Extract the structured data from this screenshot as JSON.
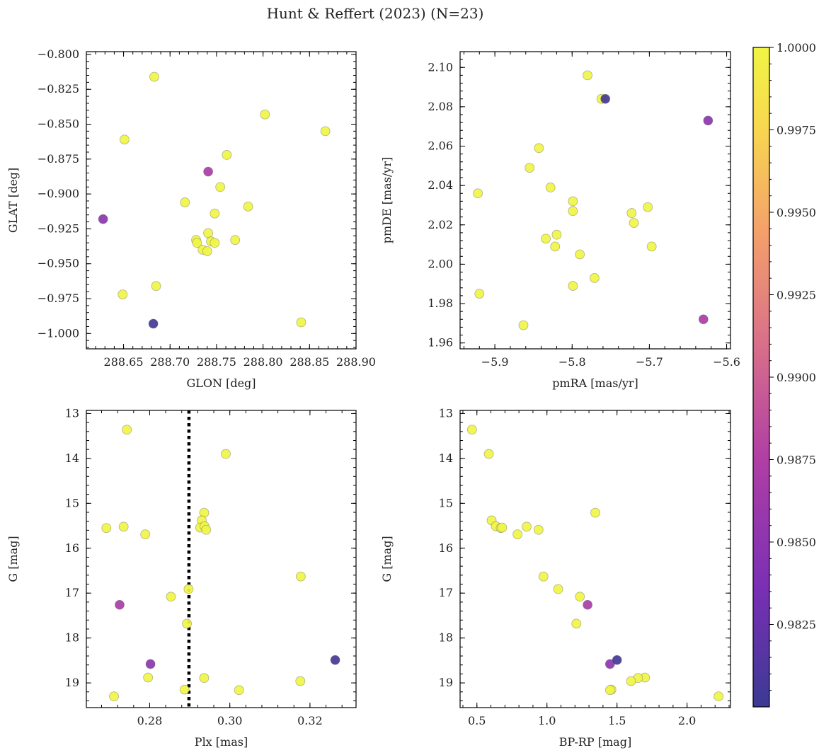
{
  "figure": {
    "title": "Hunt & Reffert (2023) (N=23)"
  },
  "colorbar": {
    "vmin": 0.98,
    "vmax": 1.0,
    "ticks": [
      "1.0000",
      "0.9975",
      "0.9950",
      "0.9925",
      "0.9900",
      "0.9875",
      "0.9850",
      "0.9825"
    ],
    "tick_values": [
      1.0,
      0.9975,
      0.995,
      0.9925,
      0.99,
      0.9875,
      0.985,
      0.9825
    ],
    "colormap": [
      "#3b3a93",
      "#7a2fb5",
      "#b13fa4",
      "#d96f8a",
      "#f4a06b",
      "#f8d84f",
      "#f0f545"
    ]
  },
  "chart_data": [
    {
      "type": "scatter",
      "id": "glon-glat",
      "xlabel": "GLON [deg]",
      "ylabel": "GLAT [deg]",
      "xlim": [
        288.61,
        288.9
      ],
      "ylim": [
        -1.011,
        -0.798
      ],
      "xticks": [
        288.65,
        288.7,
        288.75,
        288.8,
        288.85,
        288.9
      ],
      "xtick_labels": [
        "288.65",
        "288.70",
        "288.75",
        "288.80",
        "288.85",
        "288.90"
      ],
      "yticks": [
        -0.8,
        -0.825,
        -0.85,
        -0.875,
        -0.9,
        -0.925,
        -0.95,
        -0.975,
        -1.0
      ],
      "ytick_labels": [
        "−0.800",
        "−0.825",
        "−0.850",
        "−0.875",
        "−0.900",
        "−0.925",
        "−0.950",
        "−0.975",
        "−1.000"
      ],
      "points": [
        {
          "x": 288.683,
          "y": -0.816,
          "c": 1.0
        },
        {
          "x": 288.651,
          "y": -0.861,
          "c": 1.0
        },
        {
          "x": 288.802,
          "y": -0.843,
          "c": 1.0
        },
        {
          "x": 288.867,
          "y": -0.855,
          "c": 1.0
        },
        {
          "x": 288.761,
          "y": -0.872,
          "c": 1.0
        },
        {
          "x": 288.741,
          "y": -0.884,
          "c": 0.987
        },
        {
          "x": 288.754,
          "y": -0.895,
          "c": 1.0
        },
        {
          "x": 288.716,
          "y": -0.906,
          "c": 1.0
        },
        {
          "x": 288.784,
          "y": -0.909,
          "c": 1.0
        },
        {
          "x": 288.628,
          "y": -0.918,
          "c": 0.985
        },
        {
          "x": 288.741,
          "y": -0.928,
          "c": 1.0
        },
        {
          "x": 288.748,
          "y": -0.914,
          "c": 1.0
        },
        {
          "x": 288.728,
          "y": -0.933,
          "c": 1.0
        },
        {
          "x": 288.729,
          "y": -0.935,
          "c": 1.0
        },
        {
          "x": 288.744,
          "y": -0.934,
          "c": 1.0
        },
        {
          "x": 288.748,
          "y": -0.935,
          "c": 1.0
        },
        {
          "x": 288.77,
          "y": -0.933,
          "c": 1.0
        },
        {
          "x": 288.735,
          "y": -0.94,
          "c": 1.0
        },
        {
          "x": 288.74,
          "y": -0.941,
          "c": 1.0
        },
        {
          "x": 288.685,
          "y": -0.966,
          "c": 1.0
        },
        {
          "x": 288.649,
          "y": -0.972,
          "c": 1.0
        },
        {
          "x": 288.682,
          "y": -0.993,
          "c": 0.9805
        },
        {
          "x": 288.841,
          "y": -0.992,
          "c": 1.0
        }
      ]
    },
    {
      "type": "scatter",
      "id": "pmra-pmde",
      "xlabel": "pmRA [mas/yr]",
      "ylabel": "pmDE [mas/yr]",
      "xlim": [
        -5.945,
        -5.595
      ],
      "ylim": [
        1.957,
        2.108
      ],
      "xticks": [
        -5.9,
        -5.8,
        -5.7,
        -5.6
      ],
      "xtick_labels": [
        "−5.9",
        "−5.8",
        "−5.7",
        "−5.6"
      ],
      "yticks": [
        1.96,
        1.98,
        2.0,
        2.02,
        2.04,
        2.06,
        2.08,
        2.1
      ],
      "ytick_labels": [
        "1.96",
        "1.98",
        "2.00",
        "2.02",
        "2.04",
        "2.06",
        "2.08",
        "2.10"
      ],
      "points": [
        {
          "x": -5.78,
          "y": 2.096,
          "c": 1.0
        },
        {
          "x": -5.757,
          "y": 2.084,
          "c": 0.9805
        },
        {
          "x": -5.762,
          "y": 2.084,
          "c": 1.0
        },
        {
          "x": -5.624,
          "y": 2.073,
          "c": 0.985
        },
        {
          "x": -5.843,
          "y": 2.059,
          "c": 1.0
        },
        {
          "x": -5.855,
          "y": 2.049,
          "c": 1.0
        },
        {
          "x": -5.828,
          "y": 2.039,
          "c": 1.0
        },
        {
          "x": -5.922,
          "y": 2.036,
          "c": 1.0
        },
        {
          "x": -5.799,
          "y": 2.032,
          "c": 1.0
        },
        {
          "x": -5.702,
          "y": 2.029,
          "c": 1.0
        },
        {
          "x": -5.799,
          "y": 2.027,
          "c": 1.0
        },
        {
          "x": -5.723,
          "y": 2.026,
          "c": 1.0
        },
        {
          "x": -5.72,
          "y": 2.021,
          "c": 1.0
        },
        {
          "x": -5.82,
          "y": 2.015,
          "c": 1.0
        },
        {
          "x": -5.834,
          "y": 2.013,
          "c": 1.0
        },
        {
          "x": -5.822,
          "y": 2.009,
          "c": 1.0
        },
        {
          "x": -5.697,
          "y": 2.009,
          "c": 1.0
        },
        {
          "x": -5.79,
          "y": 2.005,
          "c": 1.0
        },
        {
          "x": -5.771,
          "y": 1.993,
          "c": 1.0
        },
        {
          "x": -5.799,
          "y": 1.989,
          "c": 1.0
        },
        {
          "x": -5.92,
          "y": 1.985,
          "c": 1.0
        },
        {
          "x": -5.63,
          "y": 1.972,
          "c": 0.987
        },
        {
          "x": -5.863,
          "y": 1.969,
          "c": 1.0
        }
      ]
    },
    {
      "type": "scatter",
      "id": "plx-g",
      "xlabel": "Plx [mas]",
      "ylabel": "G [mag]",
      "xlim": [
        0.2642,
        0.3315
      ],
      "ylim": [
        19.55,
        12.93
      ],
      "y_inverted": true,
      "vline": {
        "x": 0.2898,
        "style": "dotted"
      },
      "xticks": [
        0.28,
        0.3,
        0.32
      ],
      "xtick_labels": [
        "0.28",
        "0.30",
        "0.32"
      ],
      "yticks": [
        13,
        14,
        15,
        16,
        17,
        18,
        19
      ],
      "ytick_labels": [
        "13",
        "14",
        "15",
        "16",
        "17",
        "18",
        "19"
      ],
      "points": [
        {
          "x": 0.2743,
          "y": 13.36,
          "c": 1.0
        },
        {
          "x": 0.299,
          "y": 13.9,
          "c": 1.0
        },
        {
          "x": 0.2936,
          "y": 15.21,
          "c": 1.0
        },
        {
          "x": 0.293,
          "y": 15.38,
          "c": 1.0
        },
        {
          "x": 0.2926,
          "y": 15.54,
          "c": 1.0
        },
        {
          "x": 0.2937,
          "y": 15.51,
          "c": 1.0
        },
        {
          "x": 0.2941,
          "y": 15.59,
          "c": 1.0
        },
        {
          "x": 0.2692,
          "y": 15.55,
          "c": 1.0
        },
        {
          "x": 0.2735,
          "y": 15.52,
          "c": 1.0
        },
        {
          "x": 0.2789,
          "y": 15.69,
          "c": 1.0
        },
        {
          "x": 0.3177,
          "y": 16.63,
          "c": 1.0
        },
        {
          "x": 0.2897,
          "y": 16.91,
          "c": 1.0
        },
        {
          "x": 0.2853,
          "y": 17.08,
          "c": 1.0
        },
        {
          "x": 0.2725,
          "y": 17.26,
          "c": 0.987
        },
        {
          "x": 0.2893,
          "y": 17.68,
          "c": 1.0
        },
        {
          "x": 0.3263,
          "y": 18.49,
          "c": 0.9805
        },
        {
          "x": 0.2802,
          "y": 18.58,
          "c": 0.985
        },
        {
          "x": 0.2796,
          "y": 18.88,
          "c": 1.0
        },
        {
          "x": 0.2936,
          "y": 18.89,
          "c": 1.0
        },
        {
          "x": 0.3176,
          "y": 18.96,
          "c": 1.0
        },
        {
          "x": 0.2887,
          "y": 19.15,
          "c": 1.0
        },
        {
          "x": 0.3023,
          "y": 19.16,
          "c": 1.0
        },
        {
          "x": 0.2711,
          "y": 19.3,
          "c": 1.0
        }
      ]
    },
    {
      "type": "scatter",
      "id": "bprp-g",
      "xlabel": "BP-RP [mag]",
      "ylabel": "G [mag]",
      "xlim": [
        0.38,
        2.31
      ],
      "ylim": [
        19.55,
        12.93
      ],
      "y_inverted": true,
      "xticks": [
        0.5,
        1.0,
        1.5,
        2.0
      ],
      "xtick_labels": [
        "0.5",
        "1.0",
        "1.5",
        "2.0"
      ],
      "yticks": [
        13,
        14,
        15,
        16,
        17,
        18,
        19
      ],
      "ytick_labels": [
        "13",
        "14",
        "15",
        "16",
        "17",
        "18",
        "19"
      ],
      "points": [
        {
          "x": 0.465,
          "y": 13.36,
          "c": 1.0
        },
        {
          "x": 0.585,
          "y": 13.9,
          "c": 1.0
        },
        {
          "x": 1.345,
          "y": 15.21,
          "c": 1.0
        },
        {
          "x": 0.605,
          "y": 15.38,
          "c": 1.0
        },
        {
          "x": 0.635,
          "y": 15.51,
          "c": 1.0
        },
        {
          "x": 0.67,
          "y": 15.55,
          "c": 1.0
        },
        {
          "x": 0.68,
          "y": 15.54,
          "c": 1.0
        },
        {
          "x": 0.855,
          "y": 15.52,
          "c": 1.0
        },
        {
          "x": 0.94,
          "y": 15.59,
          "c": 1.0
        },
        {
          "x": 0.79,
          "y": 15.69,
          "c": 1.0
        },
        {
          "x": 0.975,
          "y": 16.63,
          "c": 1.0
        },
        {
          "x": 1.08,
          "y": 16.91,
          "c": 1.0
        },
        {
          "x": 1.235,
          "y": 17.08,
          "c": 1.0
        },
        {
          "x": 1.29,
          "y": 17.26,
          "c": 0.987
        },
        {
          "x": 1.21,
          "y": 17.68,
          "c": 1.0
        },
        {
          "x": 1.5,
          "y": 18.49,
          "c": 0.9805
        },
        {
          "x": 1.45,
          "y": 18.58,
          "c": 0.985
        },
        {
          "x": 1.7,
          "y": 18.88,
          "c": 1.0
        },
        {
          "x": 1.65,
          "y": 18.89,
          "c": 1.0
        },
        {
          "x": 1.6,
          "y": 18.96,
          "c": 1.0
        },
        {
          "x": 1.46,
          "y": 19.15,
          "c": 1.0
        },
        {
          "x": 1.45,
          "y": 19.16,
          "c": 1.0
        },
        {
          "x": 2.225,
          "y": 19.3,
          "c": 1.0
        }
      ]
    }
  ]
}
